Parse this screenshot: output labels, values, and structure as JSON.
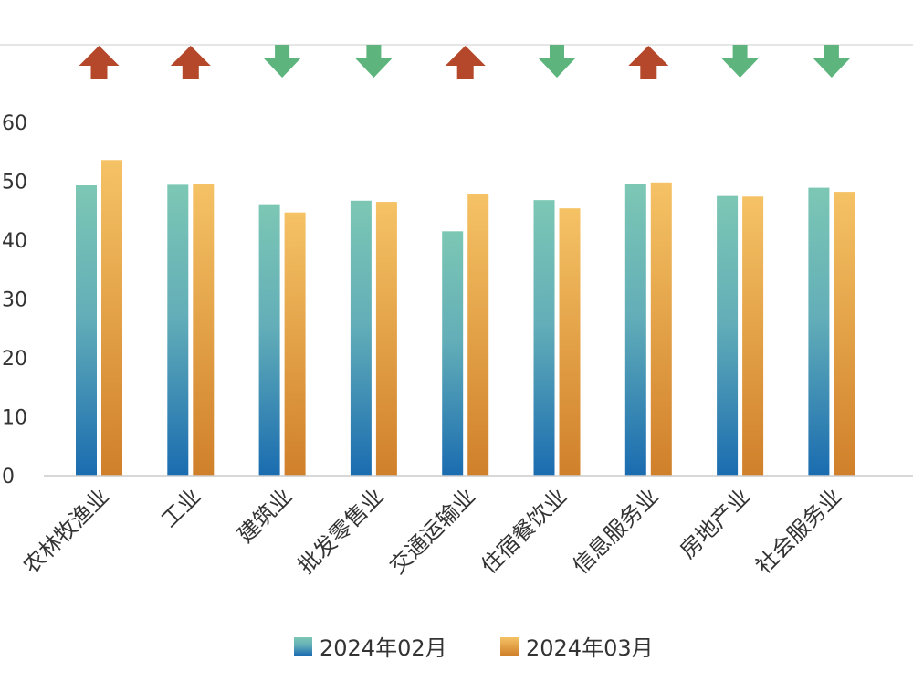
{
  "chart_data": {
    "type": "bar",
    "categories": [
      "农林牧渔业",
      "工业",
      "建筑业",
      "批发零售业",
      "交通运输业",
      "住宿餐饮业",
      "信息服务业",
      "房地产业",
      "社会服务业"
    ],
    "series": [
      {
        "name": "2024年02月",
        "values": [
          49.3,
          49.4,
          46.1,
          46.7,
          41.5,
          46.8,
          49.5,
          47.5,
          48.9
        ],
        "color_top": "#7cc7b4",
        "color_bottom": "#1a6cb0"
      },
      {
        "name": "2024年03月",
        "values": [
          53.6,
          49.6,
          44.7,
          46.5,
          47.8,
          45.4,
          49.8,
          47.4,
          48.2
        ],
        "color_top": "#f5c265",
        "color_bottom": "#d0802a"
      }
    ],
    "trend": [
      "up",
      "up",
      "down",
      "down",
      "up",
      "down",
      "up",
      "down",
      "down"
    ],
    "trend_colors": {
      "up": "#b5472a",
      "down": "#5db57d"
    },
    "yticks": [
      0,
      10,
      20,
      30,
      40,
      50,
      60
    ],
    "ylim": [
      0,
      60
    ],
    "title": "",
    "xlabel": "",
    "ylabel": "",
    "grid": false,
    "legend_position": "bottom"
  }
}
